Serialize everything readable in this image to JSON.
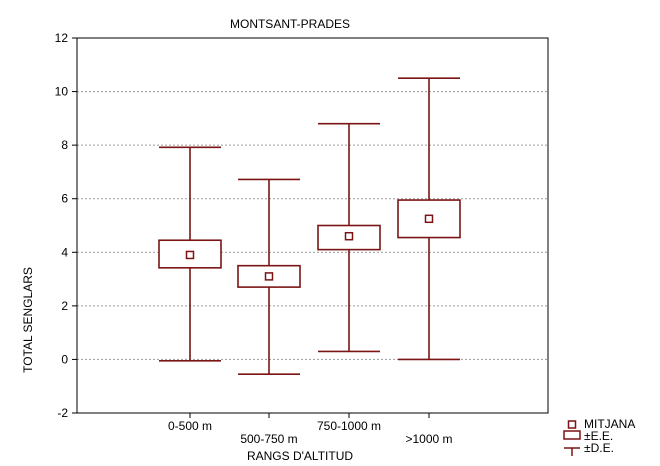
{
  "chart_data": {
    "type": "boxplot",
    "title": "MONTSANT-PRADES",
    "xlabel": "RANGS D'ALTITUD",
    "ylabel": "TOTAL SENGLARS",
    "ylim": [
      -2,
      12
    ],
    "yticks": [
      -2,
      0,
      2,
      4,
      6,
      8,
      10,
      12
    ],
    "grid": "horizontal dotted",
    "categories": [
      "0-500 m",
      "500-750 m",
      "750-1000 m",
      ">1000 m"
    ],
    "series": [
      {
        "category": "0-500 m",
        "mean": 3.9,
        "se_low": 3.42,
        "se_high": 4.45,
        "sd_low": -0.05,
        "sd_high": 7.92
      },
      {
        "category": "500-750 m",
        "mean": 3.1,
        "se_low": 2.7,
        "se_high": 3.5,
        "sd_low": -0.55,
        "sd_high": 6.72
      },
      {
        "category": "750-1000 m",
        "mean": 4.6,
        "se_low": 4.1,
        "se_high": 5.0,
        "sd_low": 0.3,
        "sd_high": 8.8
      },
      {
        "category": ">1000 m",
        "mean": 5.25,
        "se_low": 4.55,
        "se_high": 5.95,
        "sd_low": 0.0,
        "sd_high": 10.5
      }
    ],
    "legend": {
      "position": "bottom-right",
      "items": [
        "MITJANA",
        "±E.E.",
        "±D.E."
      ]
    },
    "colors": {
      "series": "#7b1414",
      "grid": "#9a9a9a",
      "axis": "#000000"
    }
  }
}
